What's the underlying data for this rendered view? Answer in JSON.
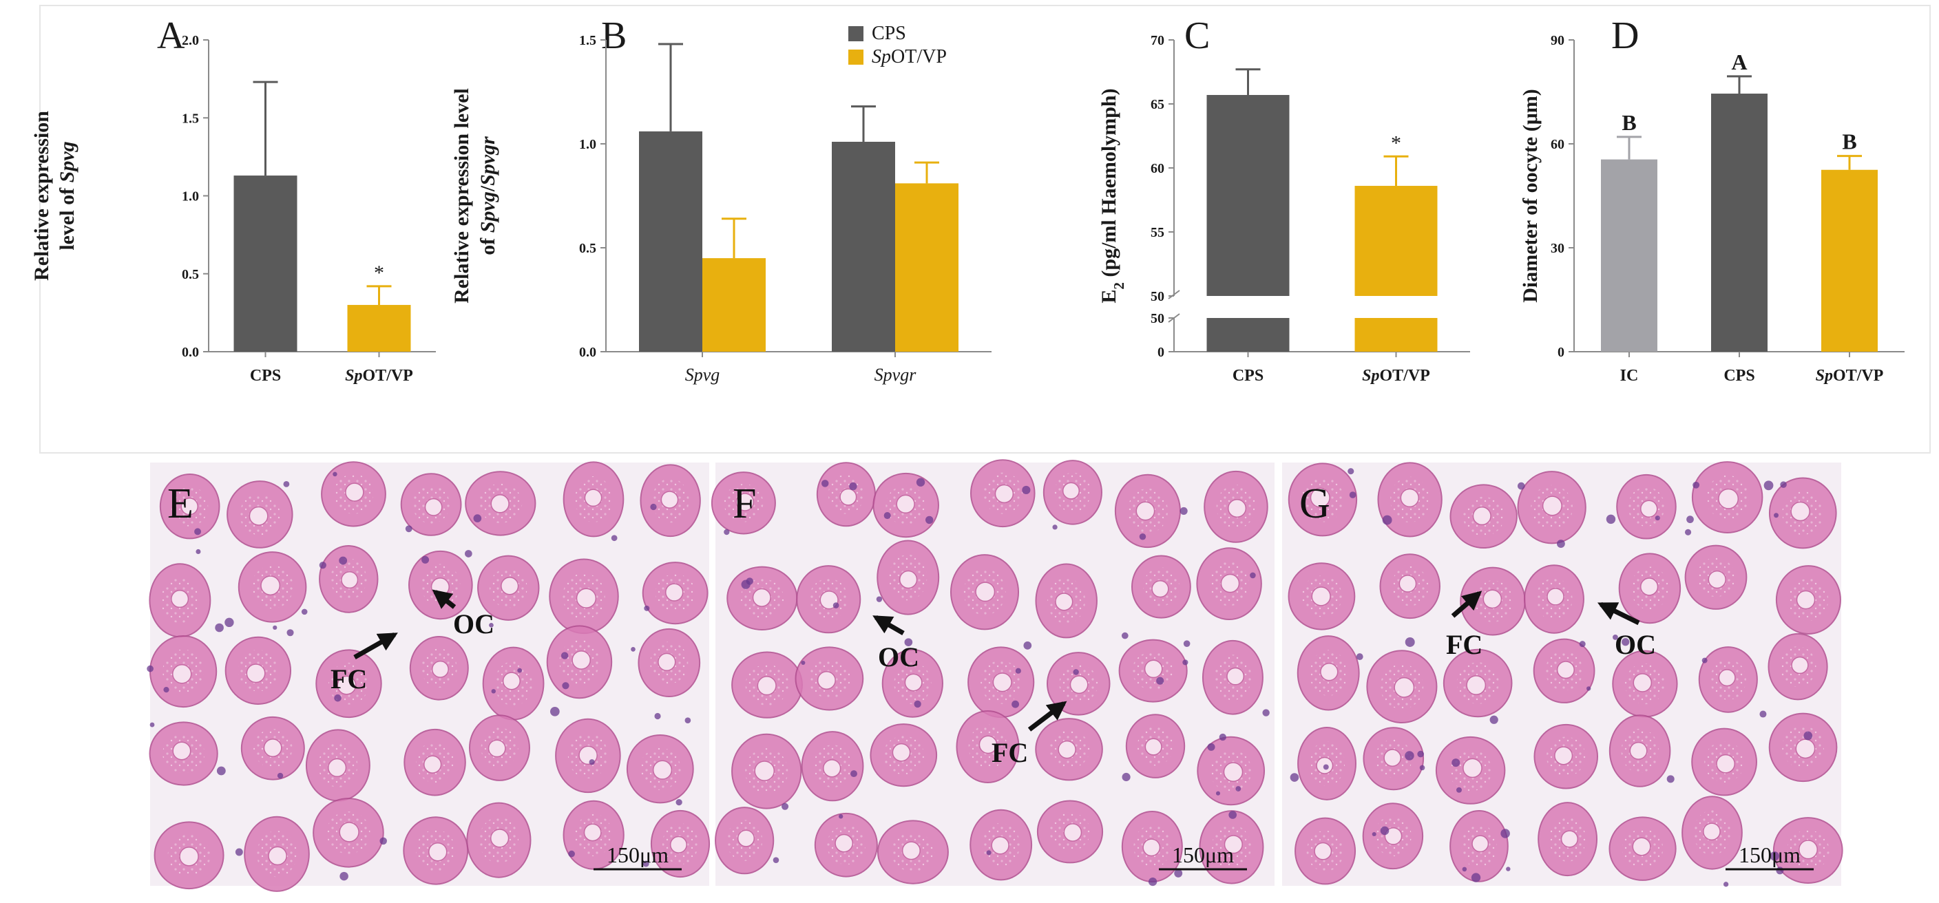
{
  "colors": {
    "cps": "#5a5a5a",
    "sp": "#e8b00f",
    "ic": "#a3a3a8",
    "axis": "#8a8a8a",
    "tissue_bg": "#f4eef4"
  },
  "chart_data": [
    {
      "panel": "A",
      "type": "bar",
      "ylabel": [
        "Relative expression",
        "level of Spvg"
      ],
      "ylim": [
        0,
        2.0
      ],
      "yticks": [
        "0.0",
        "0.5",
        "1.0",
        "1.5",
        "2.0"
      ],
      "categories": [
        "CPS",
        "SpOT/VP"
      ],
      "values": [
        1.13,
        0.3
      ],
      "errors": [
        0.6,
        0.12
      ],
      "bar_colors": [
        "cps",
        "sp"
      ],
      "annotations": [
        "",
        "*"
      ]
    },
    {
      "panel": "B",
      "type": "bar",
      "ylabel": [
        "Relative expression level",
        "of Spvg/Spvgr"
      ],
      "ylim": [
        0,
        1.5
      ],
      "yticks": [
        "0.0",
        "0.5",
        "1.0",
        "1.5"
      ],
      "categories": [
        "Spvg",
        "Spvgr"
      ],
      "series": [
        {
          "name": "CPS",
          "values": [
            1.06,
            1.01
          ],
          "errors": [
            0.42,
            0.17
          ],
          "color": "cps"
        },
        {
          "name": "SpOT/VP",
          "values": [
            0.45,
            0.81
          ],
          "errors": [
            0.19,
            0.1
          ],
          "color": "sp"
        }
      ],
      "legend": "top"
    },
    {
      "panel": "C",
      "type": "bar",
      "ylabel": [
        "E2 (pg/ml  Haemolymph)"
      ],
      "axis_break": true,
      "yticks_upper": [
        "50",
        "55",
        "60",
        "65",
        "70"
      ],
      "yticks_lower": [
        "0",
        "50"
      ],
      "ylim_upper": [
        50,
        70
      ],
      "categories": [
        "CPS",
        "SpOT/VP"
      ],
      "values": [
        65.7,
        58.6
      ],
      "errors": [
        2.0,
        2.3
      ],
      "bar_colors": [
        "cps",
        "sp"
      ],
      "annotations": [
        "",
        "*"
      ]
    },
    {
      "panel": "D",
      "type": "bar",
      "ylabel": [
        "Diameter of oocyte (μm)"
      ],
      "ylim": [
        0,
        90
      ],
      "yticks": [
        "0",
        "30",
        "60",
        "90"
      ],
      "categories": [
        "IC",
        "CPS",
        "SpOT/VP"
      ],
      "values": [
        55.5,
        74.5,
        52.5
      ],
      "errors": [
        6.5,
        5.0,
        4.0
      ],
      "bar_colors": [
        "ic",
        "cps",
        "sp"
      ],
      "annotations": [
        "B",
        "A",
        "B"
      ]
    }
  ],
  "micrographs": [
    {
      "letter": "E",
      "labels": [
        "OC",
        "FC"
      ],
      "scale": "150μm"
    },
    {
      "letter": "F",
      "labels": [
        "OC",
        "FC"
      ],
      "scale": "150μm"
    },
    {
      "letter": "G",
      "labels": [
        "FC",
        "OC"
      ],
      "scale": "150μm"
    }
  ]
}
